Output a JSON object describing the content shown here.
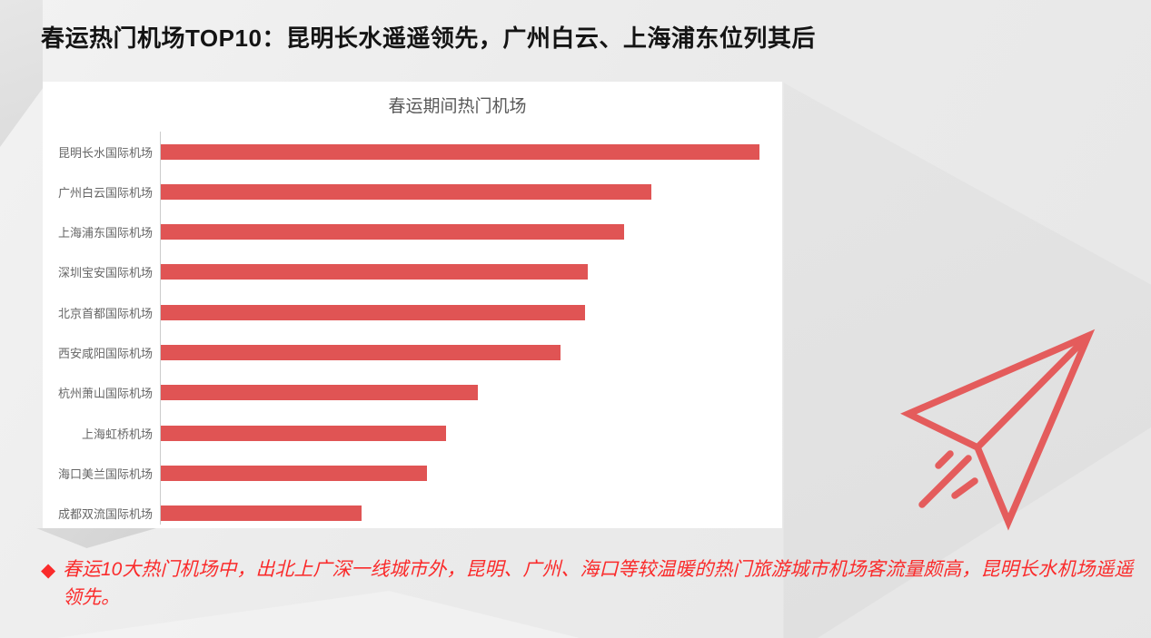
{
  "page": {
    "headline": "春运热门机场TOP10：昆明长水遥遥领先，广州白云、上海浦东位列其后",
    "note_bullet": "◆",
    "note_text": "春运10大热门机场中，出北上广深一线城市外，昆明、广州、海口等较温暖的热门旅游城市机场客流量颇高，昆明长水机场遥遥领先。"
  },
  "colors": {
    "bar": "#e05454",
    "plane": "#e45c5c",
    "note": "#fa2b2b",
    "title": "#141414",
    "chart_title": "#595959",
    "axis_label": "#666666",
    "axis_line": "#cccccc"
  },
  "icons": {
    "plane": "paper-plane-icon",
    "bullet": "diamond-bullet-icon"
  },
  "chart_data": {
    "type": "bar",
    "orientation": "horizontal",
    "title": "春运期间热门机场",
    "categories": [
      "昆明长水国际机场",
      "广州白云国际机场",
      "上海浦东国际机场",
      "深圳宝安国际机场",
      "北京首都国际机场",
      "西安咸阳国际机场",
      "杭州萧山国际机场",
      "上海虹桥机场",
      "海口美兰国际机场",
      "成都双流国际机场"
    ],
    "values": [
      100,
      81.9,
      77.4,
      71.3,
      70.9,
      66.8,
      53.0,
      47.6,
      44.5,
      33.5
    ],
    "units": "relative (no numeric axis shown in chart)",
    "xlim": [
      0,
      104
    ],
    "xlabel": "",
    "ylabel": "",
    "grid": false,
    "legend": false,
    "bar_color": "#e05454",
    "value_axis_labels_visible": false
  }
}
